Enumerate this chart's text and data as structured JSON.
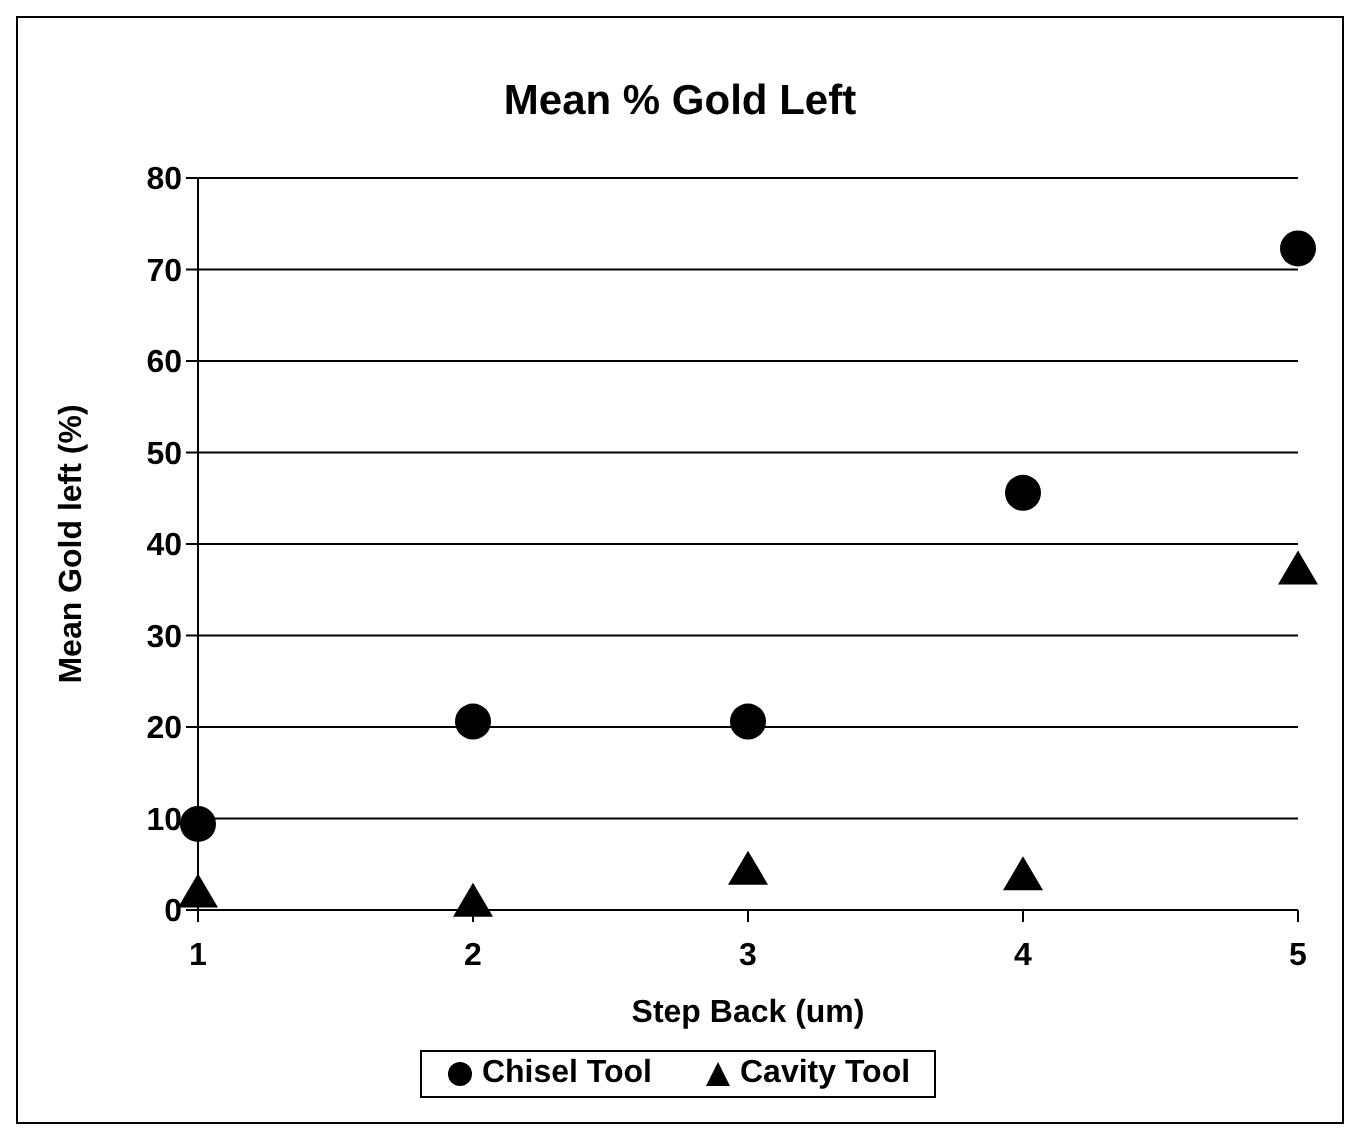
{
  "chart_data": {
    "type": "scatter",
    "title": "Mean % Gold Left",
    "xlabel": "Step Back (um)",
    "ylabel": "Mean Gold left (%)",
    "x": [
      1,
      2,
      3,
      4,
      5
    ],
    "xlim": [
      1,
      5
    ],
    "xticks": [
      1,
      2,
      3,
      4,
      5
    ],
    "ylim": [
      0,
      80
    ],
    "yticks": [
      0,
      10,
      20,
      30,
      40,
      50,
      60,
      70,
      80
    ],
    "grid": "y",
    "legend": "bottom",
    "series": [
      {
        "name": "Chisel Tool",
        "color": "#000000",
        "marker": "circle",
        "values": [
          9.4,
          20.6,
          20.6,
          45.6,
          72.3
        ]
      },
      {
        "name": "Cavity Tool",
        "color": "#000000",
        "marker": "triangle",
        "values": [
          1.8,
          0.8,
          4.3,
          3.7,
          37.1
        ]
      }
    ]
  }
}
